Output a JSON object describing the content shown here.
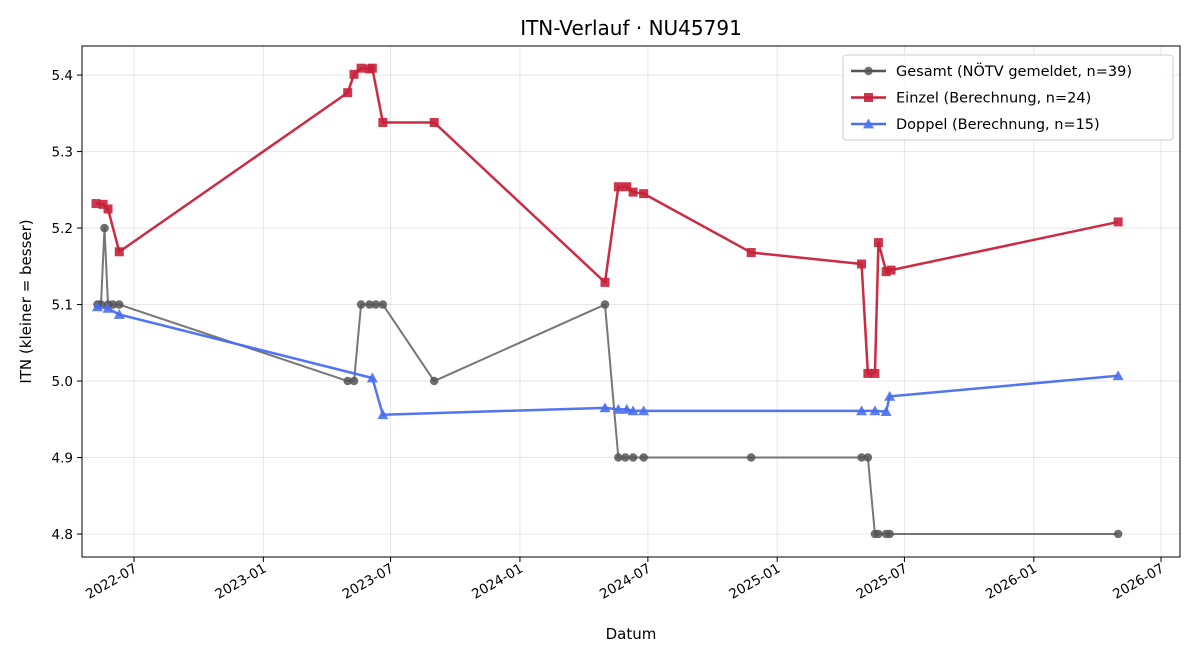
{
  "chart_data": {
    "type": "line",
    "title": "ITN-Verlauf · NU45791",
    "xlabel": "Datum",
    "ylabel": "ITN  (kleiner = besser)",
    "ylim": [
      4.77,
      5.438
    ],
    "xlim": [
      "2022-04-18",
      "2026-07-28"
    ],
    "grid": true,
    "legend_position": "top-right",
    "x_ticks": [
      "2022-07-01",
      "2023-01-01",
      "2023-07-01",
      "2024-01-01",
      "2024-07-01",
      "2025-01-01",
      "2025-07-01",
      "2026-01-01",
      "2026-07-01"
    ],
    "x_tick_labels": [
      "2022-07",
      "2023-01",
      "2023-07",
      "2024-01",
      "2024-07",
      "2025-01",
      "2025-07",
      "2026-01",
      "2026-07"
    ],
    "y_ticks": [
      4.8,
      4.9,
      5.0,
      5.1,
      5.2,
      5.3,
      5.4
    ],
    "y_tick_labels": [
      "4.8",
      "4.9",
      "5.0",
      "5.1",
      "5.2",
      "5.3",
      "5.4"
    ],
    "series": [
      {
        "name": "Gesamt (NÖTV gemeldet, n=39)",
        "color": "#555555",
        "marker": "circle",
        "points": [
          [
            "2022-05-10",
            5.1
          ],
          [
            "2022-05-15",
            5.1
          ],
          [
            "2022-05-20",
            5.2
          ],
          [
            "2022-05-25",
            5.1
          ],
          [
            "2022-06-01",
            5.1
          ],
          [
            "2022-06-10",
            5.1
          ],
          [
            "2023-05-01",
            5.0
          ],
          [
            "2023-05-10",
            5.0
          ],
          [
            "2023-05-20",
            5.1
          ],
          [
            "2023-06-01",
            5.1
          ],
          [
            "2023-06-10",
            5.1
          ],
          [
            "2023-06-20",
            5.1
          ],
          [
            "2023-09-01",
            5.0
          ],
          [
            "2024-05-01",
            5.1
          ],
          [
            "2024-05-20",
            4.9
          ],
          [
            "2024-05-30",
            4.9
          ],
          [
            "2024-06-10",
            4.9
          ],
          [
            "2024-06-25",
            4.9
          ],
          [
            "2024-11-25",
            4.9
          ],
          [
            "2025-05-01",
            4.9
          ],
          [
            "2025-05-10",
            4.9
          ],
          [
            "2025-05-20",
            4.8
          ],
          [
            "2025-05-25",
            4.8
          ],
          [
            "2025-06-05",
            4.8
          ],
          [
            "2025-06-10",
            4.8
          ],
          [
            "2026-05-01",
            4.8
          ]
        ]
      },
      {
        "name": "Einzel (Berechnung, n=24)",
        "color": "#c8203a",
        "marker": "square",
        "points": [
          [
            "2022-05-08",
            5.232
          ],
          [
            "2022-05-18",
            5.231
          ],
          [
            "2022-05-25",
            5.225
          ],
          [
            "2022-06-10",
            5.169
          ],
          [
            "2023-05-01",
            5.377
          ],
          [
            "2023-05-10",
            5.401
          ],
          [
            "2023-05-20",
            5.409
          ],
          [
            "2023-06-01",
            5.408
          ],
          [
            "2023-06-05",
            5.409
          ],
          [
            "2023-06-20",
            5.338
          ],
          [
            "2023-09-01",
            5.338
          ],
          [
            "2024-05-01",
            5.129
          ],
          [
            "2024-05-20",
            5.254
          ],
          [
            "2024-06-01",
            5.254
          ],
          [
            "2024-06-10",
            5.247
          ],
          [
            "2024-06-25",
            5.245
          ],
          [
            "2024-11-25",
            5.168
          ],
          [
            "2025-05-01",
            5.153
          ],
          [
            "2025-05-10",
            5.01
          ],
          [
            "2025-05-20",
            5.01
          ],
          [
            "2025-05-25",
            5.181
          ],
          [
            "2025-06-05",
            5.143
          ],
          [
            "2025-06-12",
            5.145
          ],
          [
            "2026-05-01",
            5.208
          ]
        ]
      },
      {
        "name": "Doppel (Berechnung, n=15)",
        "color": "#4a6ef0",
        "marker": "triangle",
        "points": [
          [
            "2022-05-10",
            5.097
          ],
          [
            "2022-05-25",
            5.095
          ],
          [
            "2022-06-10",
            5.087
          ],
          [
            "2023-06-05",
            5.004
          ],
          [
            "2023-06-20",
            4.956
          ],
          [
            "2024-05-01",
            4.965
          ],
          [
            "2024-05-20",
            4.963
          ],
          [
            "2024-06-01",
            4.963
          ],
          [
            "2024-06-10",
            4.961
          ],
          [
            "2024-06-25",
            4.961
          ],
          [
            "2025-05-01",
            4.961
          ],
          [
            "2025-05-20",
            4.961
          ],
          [
            "2025-06-05",
            4.96
          ],
          [
            "2025-06-10",
            4.98
          ],
          [
            "2026-05-01",
            5.007
          ]
        ]
      }
    ]
  }
}
